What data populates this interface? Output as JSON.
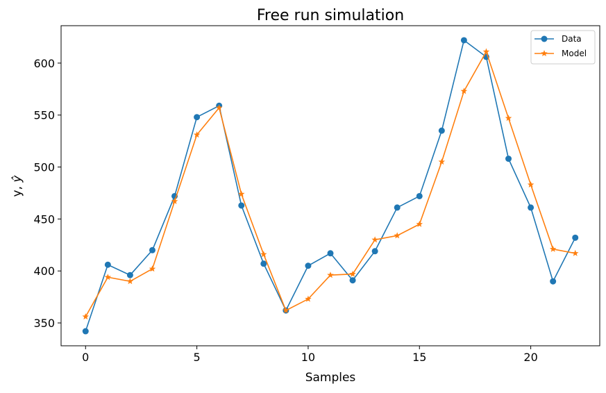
{
  "chart_data": {
    "type": "line",
    "title": "Free run simulation",
    "xlabel": "Samples",
    "ylabel_main": "y, ",
    "ylabel_hat": "ŷ",
    "xlim": [
      -1.1,
      23.1
    ],
    "ylim": [
      328,
      636
    ],
    "xticks": [
      0,
      5,
      10,
      15,
      20
    ],
    "yticks": [
      350,
      400,
      450,
      500,
      550,
      600
    ],
    "x": [
      0,
      1,
      2,
      3,
      4,
      5,
      6,
      7,
      8,
      9,
      10,
      11,
      12,
      13,
      14,
      15,
      16,
      17,
      18,
      19,
      20,
      21,
      22
    ],
    "series": [
      {
        "name": "Data",
        "color": "#1f77b4",
        "marker": "circle",
        "values": [
          342,
          406,
          396,
          420,
          472,
          548,
          559,
          463,
          407,
          362,
          405,
          417,
          391,
          419,
          461,
          472,
          535,
          622,
          606,
          508,
          461,
          390,
          432
        ]
      },
      {
        "name": "Model",
        "color": "#ff7f0e",
        "marker": "star",
        "values": [
          356,
          394,
          390,
          402,
          467,
          531,
          557,
          474,
          416,
          362,
          373,
          396,
          397,
          430,
          434,
          445,
          505,
          573,
          611,
          547,
          483,
          421,
          417
        ]
      }
    ],
    "grid": false,
    "legend_position": "top-right"
  }
}
